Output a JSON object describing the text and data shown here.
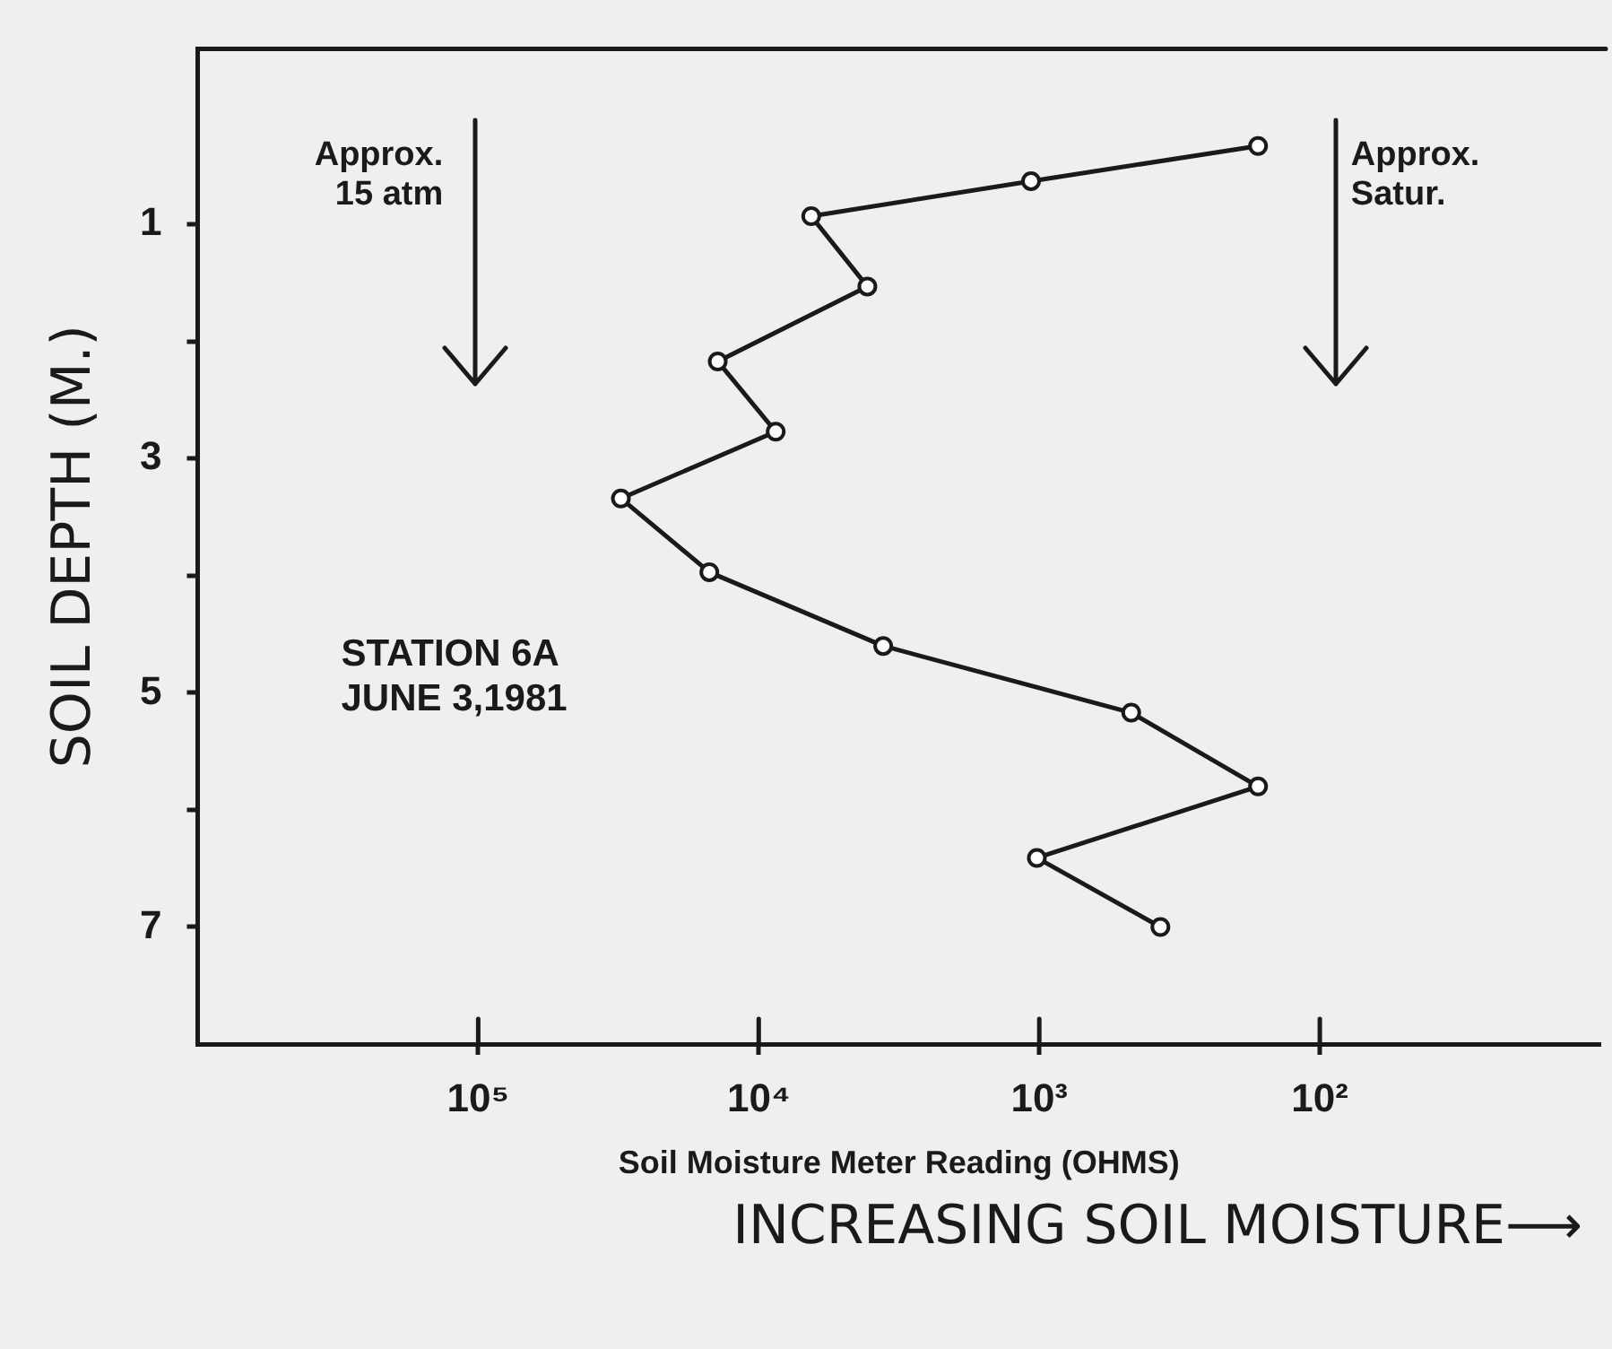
{
  "chart_data": {
    "type": "line",
    "xlabel": "Soil Moisture Meter Reading (OHMS)",
    "ylabel": "SOIL DEPTH (M.)",
    "log": "x",
    "xlim": [
      1000000,
      10
    ],
    "ylim": [
      8,
      -0.5
    ],
    "xticks": [
      {
        "value": 100000,
        "label": "10⁵"
      },
      {
        "value": 10000,
        "label": "10⁴"
      },
      {
        "value": 1000,
        "label": "10³"
      },
      {
        "value": 100,
        "label": "10²"
      }
    ],
    "yticks": [
      1,
      {
        "value": 2,
        "label": null
      },
      3,
      {
        "value": 4,
        "label": null
      },
      5,
      {
        "value": 6,
        "label": null
      },
      7
    ],
    "grid": false,
    "legend": false,
    "marker": "circle",
    "line_style": "solid",
    "series": [
      {
        "color": "#1a1a1a",
        "x": [
          166,
          1070,
          6500,
          4100,
          14000,
          8700,
          31000,
          15000,
          3600,
          470,
          166,
          1020,
          370
        ],
        "values": [
          0.33,
          0.63,
          0.93,
          1.53,
          2.17,
          2.77,
          3.34,
          3.97,
          4.6,
          5.17,
          5.8,
          6.41,
          7.0
        ]
      }
    ],
    "annotations": [
      "Approx.\n15 atm",
      "Approx.\nSatur.",
      "STATION 6A\nJUNE 3,1981",
      "INCREASING SOIL MOISTURE⟶"
    ]
  }
}
